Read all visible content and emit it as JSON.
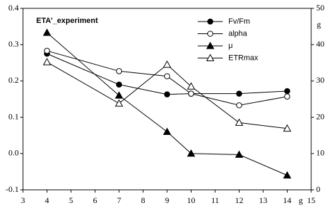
{
  "chart_data": {
    "type": "line",
    "title": "ETA'_experiment",
    "x_label": "g",
    "y2_label": "g",
    "x": [
      4,
      7,
      9,
      10,
      12,
      14
    ],
    "xlim": [
      3,
      15
    ],
    "xticks": [
      3,
      4,
      5,
      6,
      7,
      8,
      9,
      10,
      11,
      12,
      13,
      14,
      15
    ],
    "ylim": [
      -0.1,
      0.4
    ],
    "yticks": [
      -0.1,
      {
        "value": 0,
        "label": "0.0"
      },
      0.1,
      0.2,
      0.3,
      0.4
    ],
    "y2lim": [
      0,
      50
    ],
    "y2ticks": [
      0,
      10,
      20,
      30,
      40,
      50
    ],
    "series": [
      {
        "name": "Fv/Fm",
        "color": "#000000",
        "marker": "filled-circle",
        "values": [
          0.275,
          0.19,
          0.163,
          0.165,
          0.165,
          0.172
        ]
      },
      {
        "name": "alpha",
        "color": "#000000",
        "marker": "open-circle",
        "values": [
          0.283,
          0.227,
          0.213,
          0.165,
          0.133,
          0.157
        ]
      },
      {
        "name": "μ",
        "color": "#000000",
        "marker": "filled-triangle",
        "values": [
          0.333,
          0.16,
          0.06,
          0.0,
          -0.003,
          -0.06
        ]
      },
      {
        "name": "ETRmax",
        "color": "#000000",
        "marker": "open-triangle",
        "axis": "y2",
        "values": [
          35.2,
          23.8,
          34.5,
          28.5,
          18.5,
          16.9
        ]
      }
    ]
  }
}
